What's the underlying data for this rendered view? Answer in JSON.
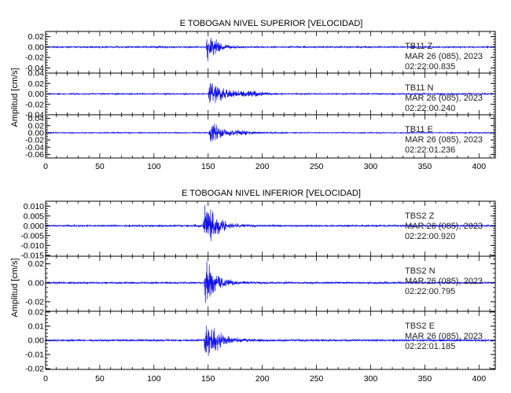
{
  "colors": {
    "trace": "#1010ee",
    "axes": "#000000",
    "background": "#ffffff"
  },
  "chart_data": [
    {
      "type": "line",
      "title": "E TOBOGAN NIVEL SUPERIOR [VELOCIDAD]",
      "ylabel": "Amplitud [cm/s]",
      "xlim": [
        0,
        415
      ],
      "x_ticks": [
        0,
        50,
        100,
        150,
        200,
        250,
        300,
        350,
        400
      ],
      "x_tick_labels": [
        "0",
        "50",
        "100",
        "150",
        "200",
        "250",
        "300",
        "350",
        "400"
      ],
      "grid": false,
      "panels": [
        {
          "component": "TB11   Z",
          "date": "MAR 26 (085), 2023",
          "time": "02:22:00.835",
          "ylim": [
            -0.05,
            0.03
          ],
          "y_ticks": [
            0.02,
            0.0,
            -0.02,
            -0.04
          ],
          "y_tick_labels": [
            "0.02",
            "0.00",
            "-0.02",
            "-0.04"
          ],
          "signal": {
            "onset": 150,
            "peak_pos": 0.028,
            "peak_neg": -0.035,
            "noise": 0.0015,
            "decay": 8,
            "coda": []
          }
        },
        {
          "component": "TB11   N",
          "date": "MAR 26 (085), 2023",
          "time": "02:22:00.240",
          "ylim": [
            -0.04,
            0.04
          ],
          "y_ticks": [
            0.04,
            0.02,
            0.0,
            -0.02,
            -0.04
          ],
          "y_tick_labels": [
            "0.04",
            "0.02",
            "0.00",
            "-0.02",
            "-0.04"
          ],
          "signal": {
            "onset": 152,
            "peak_pos": 0.02,
            "peak_neg": -0.03,
            "noise": 0.0012,
            "decay": 12,
            "coda": [
              {
                "center": 190,
                "amp": 0.005,
                "width": 14
              }
            ]
          }
        },
        {
          "component": "TB11   E",
          "date": "MAR 26 (085), 2023",
          "time": "02:22:01.236",
          "ylim": [
            -0.07,
            0.05
          ],
          "y_ticks": [
            0.04,
            0.02,
            0.0,
            -0.02,
            -0.04,
            -0.06
          ],
          "y_tick_labels": [
            "0.04",
            "0.02",
            "0.00",
            "-0.02",
            "-0.04",
            "-0.06"
          ],
          "signal": {
            "onset": 152,
            "peak_pos": 0.025,
            "peak_neg": -0.035,
            "noise": 0.0015,
            "decay": 12,
            "coda": [
              {
                "center": 180,
                "amp": 0.004,
                "width": 12
              }
            ]
          }
        }
      ]
    },
    {
      "type": "line",
      "title": "E TOBOGAN NIVEL INFERIOR [VELOCIDAD]",
      "ylabel": "Amplitud [cm/s]",
      "xlim": [
        0,
        415
      ],
      "x_ticks": [
        0,
        50,
        100,
        150,
        200,
        250,
        300,
        350,
        400
      ],
      "x_tick_labels": [
        "0",
        "50",
        "100",
        "150",
        "200",
        "250",
        "300",
        "350",
        "400"
      ],
      "grid": false,
      "panels": [
        {
          "component": "TBS2   Z",
          "date": "MAR 26 (085), 2023",
          "time": "02:22:00.920",
          "ylim": [
            -0.0155,
            0.0125
          ],
          "y_ticks": [
            0.01,
            0.005,
            0.0,
            -0.005,
            -0.01,
            -0.015
          ],
          "y_tick_labels": [
            "0.010",
            "0.005",
            "0.000",
            "-0.005",
            "-0.010",
            "-0.015"
          ],
          "signal": {
            "onset": 147,
            "peak_pos": 0.0115,
            "peak_neg": -0.013,
            "noise": 0.0005,
            "decay": 11,
            "coda": []
          }
        },
        {
          "component": "TBS2   N",
          "date": "MAR 26 (085), 2023",
          "time": "02:22:00.795",
          "ylim": [
            -0.03,
            0.028
          ],
          "y_ticks": [
            0.02,
            0.0,
            -0.02
          ],
          "y_tick_labels": [
            "0.02",
            "0.00",
            "-0.02"
          ],
          "signal": {
            "onset": 148,
            "peak_pos": 0.025,
            "peak_neg": -0.028,
            "noise": 0.001,
            "decay": 10,
            "coda": []
          }
        },
        {
          "component": "TBS2   E",
          "date": "MAR 26 (085), 2023",
          "time": "02:22:01.185",
          "ylim": [
            -0.0205,
            0.0205
          ],
          "y_ticks": [
            0.02,
            0.01,
            0.0,
            -0.01,
            -0.02
          ],
          "y_tick_labels": [
            "0.02",
            "0.01",
            "0.00",
            "-0.01",
            "-0.02"
          ],
          "signal": {
            "onset": 148,
            "peak_pos": 0.019,
            "peak_neg": -0.02,
            "noise": 0.0008,
            "decay": 11,
            "coda": []
          }
        }
      ]
    }
  ]
}
